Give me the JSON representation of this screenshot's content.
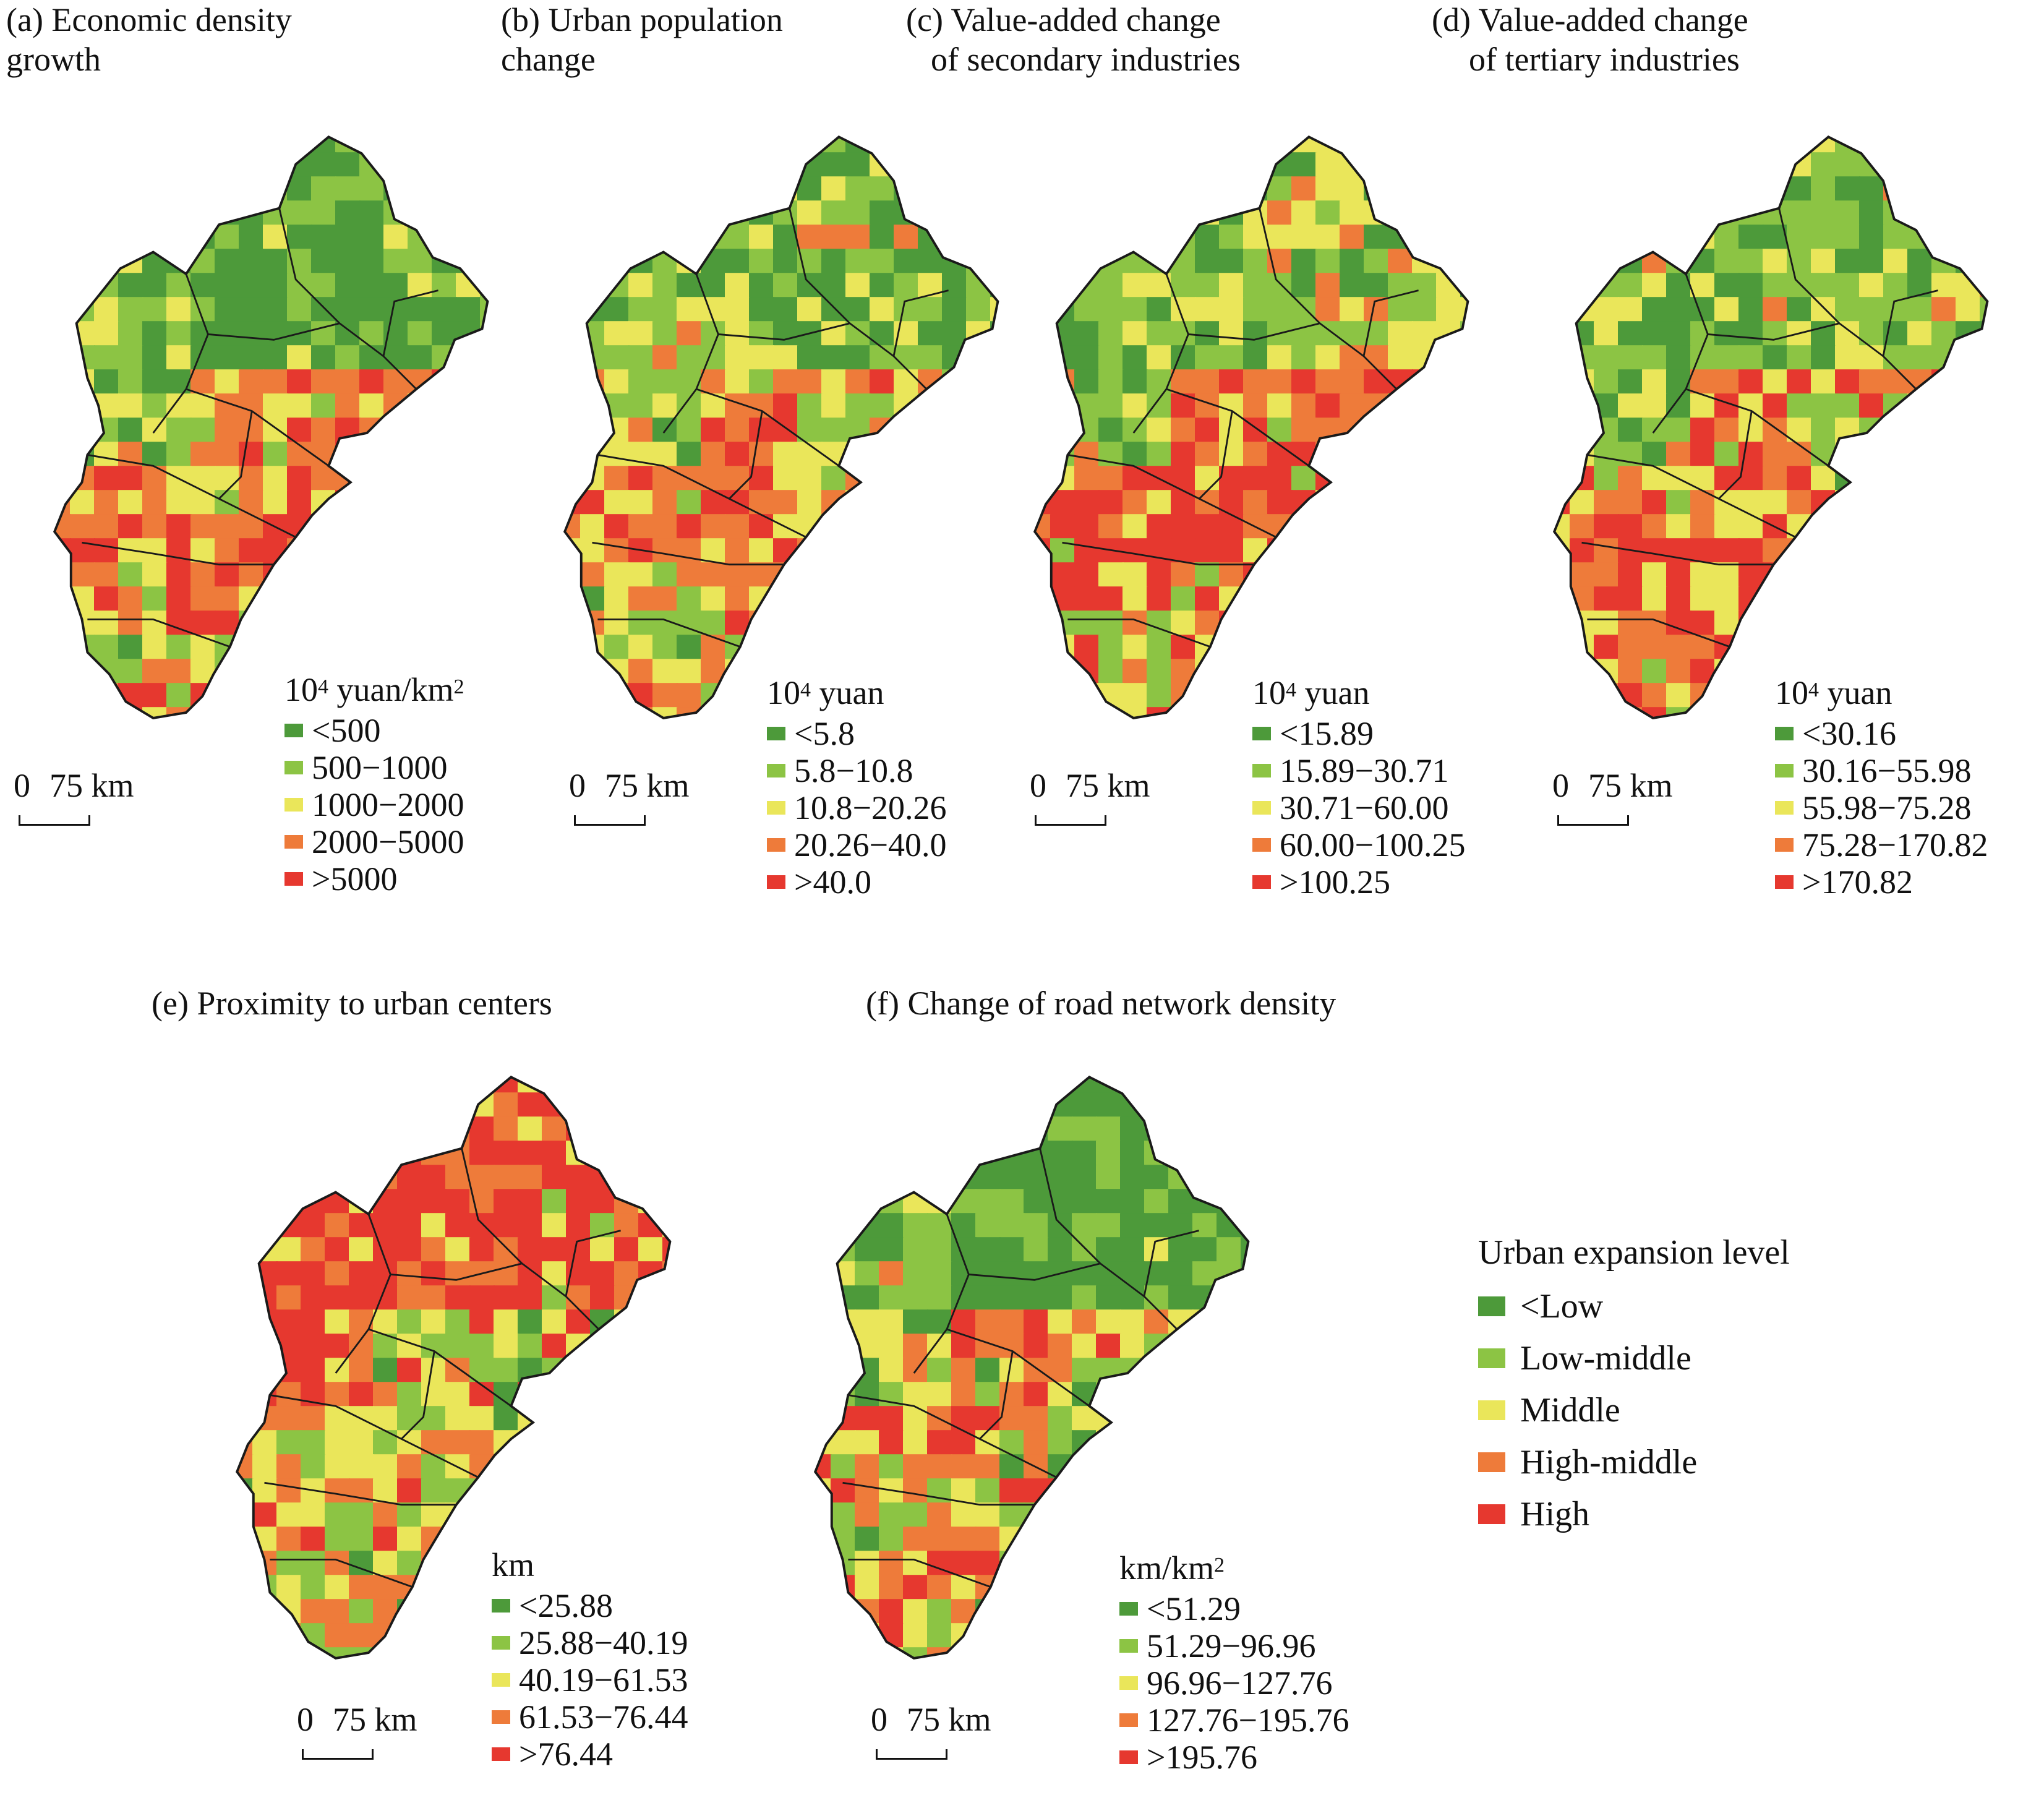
{
  "colors": {
    "class1": "#4d9a3a",
    "class2": "#8cc444",
    "class3": "#eae65a",
    "class4": "#ee7b3a",
    "class5": "#e6382f",
    "border": "#1a1a1a"
  },
  "scale": {
    "zero": "0",
    "distance": "75 km"
  },
  "panels": [
    {
      "title_line1": "(a) Economic density",
      "title_line2": "growth",
      "unit_base": "10",
      "unit_sup": "4",
      "unit_rest": " yuan/km",
      "unit_sup2": "2",
      "classes": [
        "<500",
        "500−1000",
        "1000−2000",
        "2000−5000",
        ">5000"
      ]
    },
    {
      "title_line1": "(b) Urban population",
      "title_line2": "change",
      "unit_base": "10",
      "unit_sup": "4",
      "unit_rest": " yuan",
      "unit_sup2": "",
      "classes": [
        "<5.8",
        "5.8−10.8",
        "10.8−20.26",
        "20.26−40.0",
        ">40.0"
      ]
    },
    {
      "title_line1": "(c) Value-added change",
      "title_line2": "of secondary industries",
      "unit_base": "10",
      "unit_sup": "4",
      "unit_rest": " yuan",
      "unit_sup2": "",
      "classes": [
        "<15.89",
        "15.89−30.71",
        "30.71−60.00",
        "60.00−100.25",
        ">100.25"
      ]
    },
    {
      "title_line1": "(d) Value-added change",
      "title_line2": "of tertiary industries",
      "unit_base": "10",
      "unit_sup": "4",
      "unit_rest": " yuan",
      "unit_sup2": "",
      "classes": [
        "<30.16",
        "30.16−55.98",
        "55.98−75.28",
        "75.28−170.82",
        ">170.82"
      ]
    },
    {
      "title_line1": "(e) Proximity to urban centers",
      "title_line2": "",
      "unit_base": "km",
      "unit_sup": "",
      "unit_rest": "",
      "unit_sup2": "",
      "classes": [
        "<25.88",
        "25.88−40.19",
        "40.19−61.53",
        "61.53−76.44",
        ">76.44"
      ]
    },
    {
      "title_line1": "(f) Change of road network density",
      "title_line2": "",
      "unit_base": "km/km",
      "unit_sup": "2",
      "unit_rest": "",
      "unit_sup2": "",
      "classes": [
        "<51.29",
        "51.29−96.96",
        "96.96−127.76",
        "127.76−195.76",
        ">195.76"
      ]
    }
  ],
  "urban_expansion_legend": {
    "title": "Urban expansion level",
    "levels": [
      "<Low",
      "Low-middle",
      "Middle",
      "High-middle",
      "High"
    ]
  }
}
